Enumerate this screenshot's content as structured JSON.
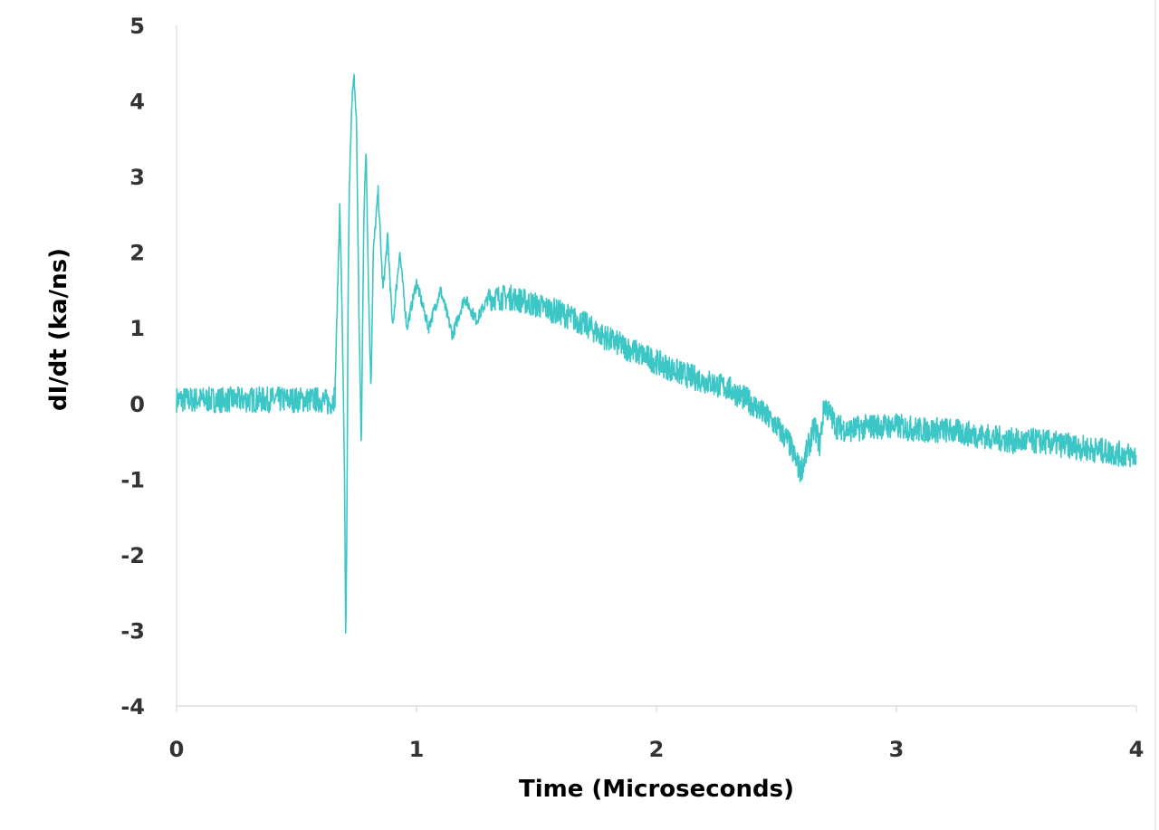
{
  "chart_data": {
    "type": "line",
    "title": "",
    "xlabel": "Time (Microseconds)",
    "ylabel": "dI/dt (ka/ns)",
    "xlim": [
      0,
      4
    ],
    "ylim": [
      -4,
      5
    ],
    "x_ticks": [
      "0",
      "1",
      "2",
      "3",
      "4"
    ],
    "y_ticks": [
      "5",
      "4",
      "3",
      "2",
      "1",
      "0",
      "-1",
      "-2",
      "-3",
      "-4"
    ],
    "grid": false,
    "legend": "none",
    "series_color": "#3cc6c6",
    "series": [
      {
        "x": [
          0,
          0.6,
          0.64,
          0.66,
          0.68,
          0.69,
          0.7,
          0.705,
          0.71,
          0.715,
          0.72,
          0.73,
          0.74,
          0.75,
          0.76,
          0.77,
          0.78,
          0.79,
          0.8,
          0.81,
          0.82,
          0.84,
          0.86,
          0.88,
          0.9,
          0.93,
          0.96,
          1.0,
          1.05,
          1.1,
          1.15,
          1.2,
          1.25,
          1.3,
          1.4,
          1.5,
          1.6,
          1.7,
          1.8,
          1.9,
          2.0,
          2.1,
          2.2,
          2.3,
          2.4,
          2.5,
          2.55,
          2.6,
          2.63,
          2.66,
          2.68,
          2.7,
          2.75,
          2.8,
          2.9,
          3.0,
          3.1,
          3.2,
          3.3,
          3.4,
          3.5,
          3.6,
          3.7,
          3.8,
          3.9,
          4.0
        ],
        "y": [
          0.05,
          0.05,
          0.0,
          0.1,
          2.6,
          1.2,
          -1.0,
          -3.25,
          -1.5,
          1.5,
          2.8,
          4.0,
          4.3,
          3.7,
          1.2,
          -0.6,
          2.4,
          3.4,
          1.5,
          0.2,
          2.0,
          2.8,
          1.5,
          2.2,
          1.0,
          2.0,
          1.0,
          1.6,
          1.0,
          1.5,
          0.9,
          1.4,
          1.1,
          1.4,
          1.4,
          1.3,
          1.2,
          1.05,
          0.85,
          0.7,
          0.55,
          0.4,
          0.3,
          0.2,
          0.0,
          -0.3,
          -0.5,
          -0.9,
          -0.6,
          -0.3,
          -0.55,
          0.0,
          -0.3,
          -0.35,
          -0.3,
          -0.3,
          -0.35,
          -0.35,
          -0.4,
          -0.45,
          -0.5,
          -0.5,
          -0.55,
          -0.6,
          -0.65,
          -0.7
        ]
      }
    ]
  }
}
